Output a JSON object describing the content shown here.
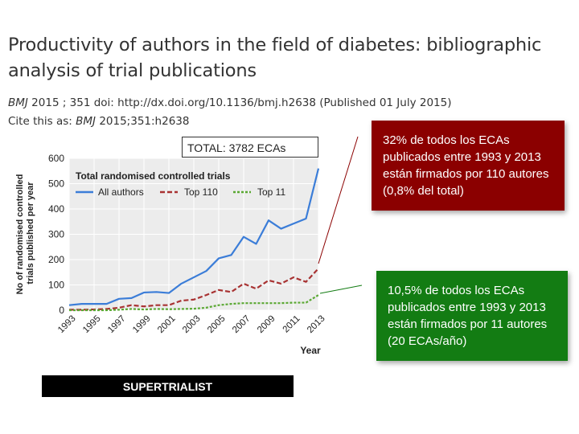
{
  "header": {
    "title": "Productivity of authors in the field of diabetes: bibliographic analysis of trial publications",
    "citation_journal": "BMJ",
    "citation_rest": " 2015 ; 351  doi: http://dx.doi.org/10.1136/bmj.h2638 ",
    "citation_published": "(Published 01 July 2015)",
    "cite_as_prefix": "Cite this as: ",
    "cite_as_journal": "BMJ",
    "cite_as_rest": " 2015;351:h2638"
  },
  "total_box": "TOTAL: 3782 ECAs",
  "callouts": {
    "red": "32% de todos los ECAs publicados entre 1993 y 2013 están firmados por 110 autores (0,8% del total)",
    "green": "10,5% de todos los ECAs publicados entre 1993 y 2013 están firmados por 11 autores (20 ECAs/año)"
  },
  "footer_bar": "SUPERTRIALIST",
  "colors": {
    "all_authors": "#3b7dd8",
    "top110": "#a83232",
    "top11": "#5aa832",
    "callout_red": "#8b0000",
    "callout_green": "#137c13"
  },
  "chart_data": {
    "type": "line",
    "legend_title": "Total randomised controlled trials",
    "xlabel": "Year",
    "ylabel": "No of randomised controlled trials published per year",
    "ylim": [
      0,
      600
    ],
    "yticks": [
      0,
      100,
      200,
      300,
      400,
      500,
      600
    ],
    "xlim": [
      1993,
      2013
    ],
    "xticks": [
      "1993",
      "1995",
      "1997",
      "1999",
      "2001",
      "2003",
      "2005",
      "2007",
      "2009",
      "2011",
      "2013"
    ],
    "grid": true,
    "legend_position": "top-left",
    "x": [
      1993,
      1994,
      1995,
      1996,
      1997,
      1998,
      1999,
      2000,
      2001,
      2002,
      2003,
      2004,
      2005,
      2006,
      2007,
      2008,
      2009,
      2010,
      2011,
      2012,
      2013
    ],
    "series": [
      {
        "name": "All authors",
        "style": "solid",
        "color": "#3b7dd8",
        "values": [
          20,
          25,
          25,
          25,
          45,
          48,
          70,
          72,
          68,
          105,
          130,
          155,
          205,
          218,
          290,
          262,
          355,
          322,
          342,
          362,
          560
        ]
      },
      {
        "name": "Top 110",
        "style": "dashed",
        "color": "#a83232",
        "values": [
          2,
          2,
          3,
          5,
          10,
          20,
          15,
          20,
          20,
          38,
          42,
          60,
          80,
          72,
          105,
          85,
          118,
          105,
          130,
          112,
          165
        ]
      },
      {
        "name": "Top 11",
        "style": "dotted",
        "color": "#5aa832",
        "values": [
          0,
          0,
          0,
          0,
          2,
          5,
          3,
          5,
          4,
          5,
          6,
          10,
          20,
          25,
          28,
          28,
          28,
          28,
          30,
          30,
          60
        ]
      }
    ]
  }
}
